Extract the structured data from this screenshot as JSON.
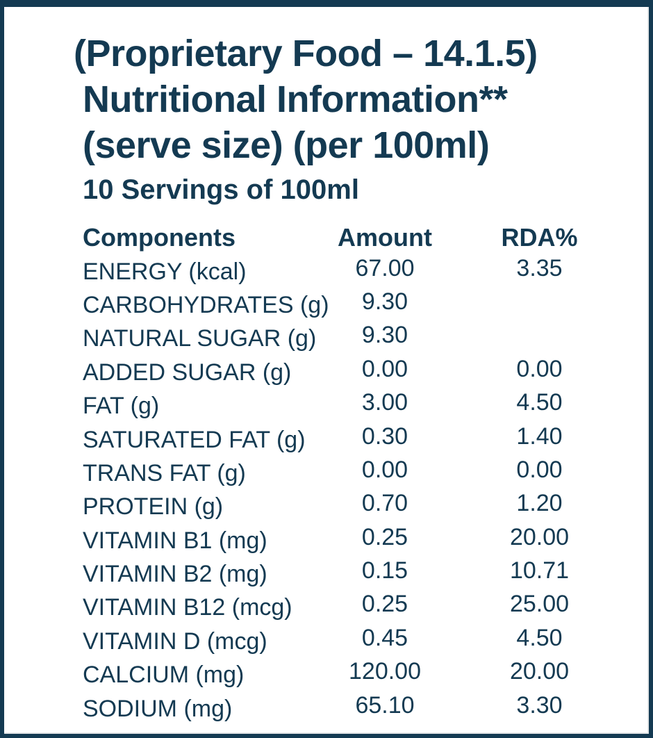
{
  "colors": {
    "ink": "#143a52",
    "background": "#ffffff"
  },
  "header": {
    "title_line1": "(Proprietary Food – 14.1.5)",
    "title_line2": "Nutritional Information**",
    "title_line3": "(serve size) (per 100ml)",
    "subtitle": "10 Servings of 100ml"
  },
  "table": {
    "columns": [
      "Components",
      "Amount",
      "RDA%"
    ],
    "rows": [
      {
        "component": "ENERGY (kcal)",
        "amount": "67.00",
        "rda": "3.35"
      },
      {
        "component": "CARBOHYDRATES (g)",
        "amount": "9.30",
        "rda": ""
      },
      {
        "component": "NATURAL SUGAR (g)",
        "amount": "9.30",
        "rda": ""
      },
      {
        "component": "ADDED SUGAR (g)",
        "amount": "0.00",
        "rda": "0.00"
      },
      {
        "component": "FAT (g)",
        "amount": "3.00",
        "rda": "4.50"
      },
      {
        "component": "SATURATED FAT (g)",
        "amount": "0.30",
        "rda": "1.40"
      },
      {
        "component": "TRANS FAT (g)",
        "amount": "0.00",
        "rda": "0.00"
      },
      {
        "component": "PROTEIN (g)",
        "amount": "0.70",
        "rda": "1.20"
      },
      {
        "component": "VITAMIN B1 (mg)",
        "amount": "0.25",
        "rda": "20.00"
      },
      {
        "component": "VITAMIN B2 (mg)",
        "amount": "0.15",
        "rda": "10.71"
      },
      {
        "component": "VITAMIN B12 (mcg)",
        "amount": "0.25",
        "rda": "25.00"
      },
      {
        "component": "VITAMIN D (mcg)",
        "amount": "0.45",
        "rda": "4.50"
      },
      {
        "component": "CALCIUM (mg)",
        "amount": "120.00",
        "rda": "20.00"
      },
      {
        "component": "SODIUM (mg)",
        "amount": "65.10",
        "rda": "3.30"
      }
    ]
  }
}
